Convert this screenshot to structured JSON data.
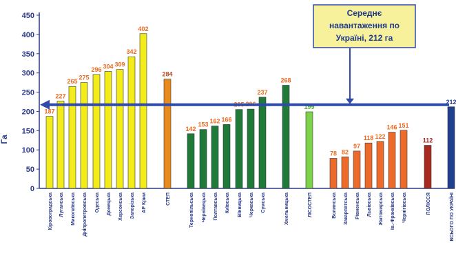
{
  "chart_data": {
    "type": "bar",
    "title": "",
    "xlabel": "",
    "ylabel": "Га",
    "ylim": [
      0,
      450
    ],
    "yticks": [
      0,
      50,
      100,
      150,
      200,
      250,
      300,
      350,
      400,
      450
    ],
    "grid": false,
    "groups": [
      {
        "color": "#f2ec1a",
        "label_color": "#ef6a1e",
        "categories": [
          "Кіровоградська",
          "Луганська",
          "Миколаївська",
          "Дніпропетровська",
          "Одеська",
          "Донецька",
          "Херсонська",
          "Запорізька",
          "АР Крим"
        ],
        "values": [
          187,
          227,
          265,
          275,
          296,
          304,
          309,
          342,
          402
        ],
        "labels": [
          "187",
          "227",
          "265",
          "275",
          "296",
          "304",
          "309",
          "342",
          "402"
        ]
      },
      {
        "color": "#e98a1c",
        "label_color": "#b5451b",
        "categories": [
          "СТЕП"
        ],
        "values": [
          284
        ],
        "labels": [
          "284"
        ]
      },
      {
        "color": "#1f7a3a",
        "label_color": "#ef6a1e",
        "categories": [
          "Тернопільська",
          "Чернівецька",
          "Полтавська",
          "Київська",
          "Вінницька",
          "Черкаська",
          "Сумська",
          "Хмельницька"
        ],
        "values": [
          142,
          153,
          162,
          166,
          205,
          206,
          237,
          268
        ],
        "labels": [
          "142",
          "153",
          "162",
          "166",
          "205",
          "206",
          "237",
          "268"
        ]
      },
      {
        "color": "#7ed14a",
        "label_color": "#4caf2a",
        "categories": [
          "ЛІСОСТЕП"
        ],
        "values": [
          199
        ],
        "labels": [
          "199"
        ]
      },
      {
        "color": "#ee6a2a",
        "label_color": "#ef6a1e",
        "categories": [
          "Волинська",
          "Закарпатська",
          "Рівненська",
          "Львівська",
          "Житомирська",
          "Ів.-Франківська",
          "Чернігівська"
        ],
        "values": [
          78,
          82,
          97,
          118,
          122,
          146,
          151
        ],
        "labels": [
          "78",
          "82",
          "97",
          "118",
          "122",
          "146",
          "151"
        ]
      },
      {
        "color": "#a8291f",
        "label_color": "#a8291f",
        "categories": [
          "ПОЛІССЯ"
        ],
        "values": [
          112
        ],
        "labels": [
          "112"
        ]
      },
      {
        "color": "#1f3f8f",
        "label_color": "#1f3f8f",
        "categories": [
          "ВСЬОГО ПО УКРАЇНІ"
        ],
        "values": [
          212
        ],
        "labels": [
          "212"
        ]
      }
    ],
    "reference_line": {
      "value": 212
    },
    "annotation": {
      "lines": [
        "Середнє",
        "навантаження  по",
        "Україні, 212 га"
      ]
    }
  }
}
